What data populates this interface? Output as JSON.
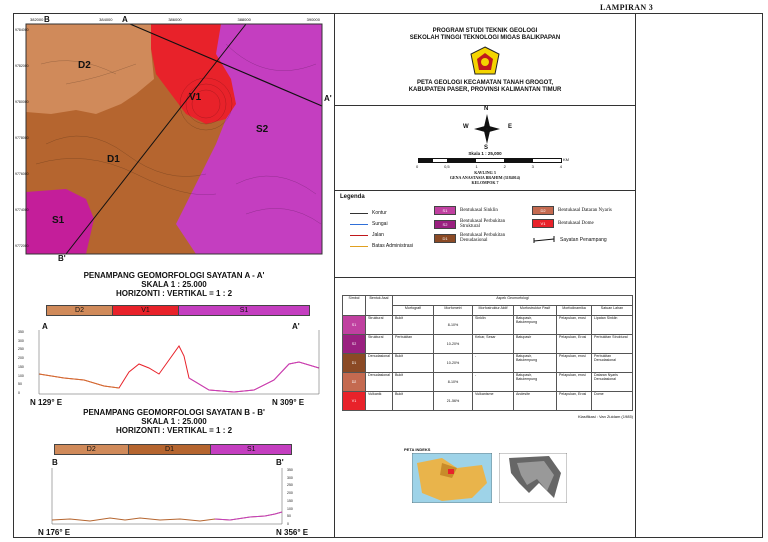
{
  "header": {
    "lampiran": "LAMPIRAN 3"
  },
  "map": {
    "units": [
      {
        "code": "D2",
        "color": "#d08a5a"
      },
      {
        "code": "V1",
        "color": "#e8222a"
      },
      {
        "code": "S2",
        "color": "#c43ec0"
      },
      {
        "code": "D1",
        "color": "#b5652f"
      },
      {
        "code": "S1",
        "color": "#c41e9a"
      }
    ],
    "section_markers": [
      "A",
      "A'",
      "B",
      "B'"
    ],
    "top_ticks": [
      "382000",
      "384000",
      "386000",
      "388000",
      "390000"
    ],
    "left_ticks": [
      "9784000",
      "9782000",
      "9780000",
      "9778000",
      "9776000",
      "9774000",
      "9772000"
    ]
  },
  "title_block": {
    "institution_line1": "PROGRAM STUDI TEKNIK GEOLOGI",
    "institution_line2": "SEKOLAH TINGGI TEKNOLOGI MIGAS BALIKPAPAN",
    "map_title_line1": "PETA GEOLOGI KECAMATAN TANAH GROGOT,",
    "map_title_line2": "KABUPATEN PASER, PROVINSI KALIMANTAN TIMUR"
  },
  "compass": {
    "n": "N",
    "s": "S",
    "e": "E",
    "w": "W"
  },
  "scale": {
    "label": "Skala 1 : 25,000",
    "ticks": [
      "0",
      "0,5",
      "1",
      "2",
      "3",
      "4"
    ],
    "unit": "KM",
    "author_line1": "KAVLING 3",
    "author_line2": "GENA ANASTASIA BRAHIM (3184014)",
    "author_line3": "KELOMPOK 7"
  },
  "legend": {
    "title": "Legenda",
    "lines": [
      {
        "label": "Kontur",
        "color": "#333333"
      },
      {
        "label": "Sungai",
        "color": "#2f6fd8"
      },
      {
        "label": "Jalan",
        "color": "#c0181c"
      },
      {
        "label": "Batas Administrasi",
        "color": "#e0a020"
      }
    ],
    "units": [
      {
        "code": "S1",
        "label": "Bentukasal Sinklin",
        "color": "#c040a0"
      },
      {
        "code": "S2",
        "label": "Bentukasal Perbukitan Struktural",
        "color": "#9a2080"
      },
      {
        "code": "D1",
        "label": "Bentukasal Perbukitan Denudasional",
        "color": "#8b4a25"
      },
      {
        "code": "D2",
        "label": "Bentukasal Dataran Nyaris",
        "color": "#c46a50"
      },
      {
        "code": "V1",
        "label": "Bentukasal Dome",
        "color": "#e8222a"
      }
    ],
    "section_label": "Sayatan Penampang"
  },
  "profile_a": {
    "title": "PENAMPANG GEOMORFOLOGI SAYATAN A - A'",
    "scale": "SKALA 1 : 25.000",
    "ratio": "HORIZONTI : VERTIKAL = 1 : 2",
    "segments": [
      {
        "code": "D2",
        "color": "#d08a5a",
        "share": 0.25
      },
      {
        "code": "V1",
        "color": "#e8222a",
        "share": 0.25
      },
      {
        "code": "S1",
        "color": "#c43ec0",
        "share": 0.5
      }
    ],
    "start": "A",
    "end": "A'",
    "dir_left": "N 129° E",
    "dir_right": "N 309° E",
    "y_ticks": [
      "350",
      "300",
      "250",
      "200",
      "150",
      "100",
      "50",
      "0"
    ]
  },
  "profile_b": {
    "title": "PENAMPANG GEOMORFOLOGI SAYATAN B - B'",
    "scale": "SKALA 1 : 25.000",
    "ratio": "HORIZONTI : VERTIKAL = 1 : 2",
    "segments": [
      {
        "code": "D2",
        "color": "#d08a5a",
        "share": 0.31
      },
      {
        "code": "D1",
        "color": "#b5652f",
        "share": 0.35
      },
      {
        "code": "S1",
        "color": "#c43ec0",
        "share": 0.34
      }
    ],
    "start": "B",
    "end": "B'",
    "dir_left": "N 176° E",
    "dir_right": "N 356° E",
    "y_ticks": [
      "350",
      "300",
      "250",
      "200",
      "150",
      "100",
      "50",
      "0"
    ]
  },
  "geo_table": {
    "group_header": "Aspek Geomorfologi",
    "col_simbol": "Simbol",
    "col_bentuk": "Bentuk Asal",
    "col_morfografi": "Morfografi",
    "col_morfometri": "Morfometri",
    "col_morfostruktur_aktif": "Morfostruktur Aktif",
    "col_morfostruktur_pasif": "Morfostruktur Pasif",
    "col_morfodinamika": "Morfodinamika",
    "col_satuan": "Satuan Lahan",
    "rows": [
      {
        "code": "S1",
        "color": "#c040a0",
        "bentuk": "Struktural",
        "morfografi": "Bukit",
        "morfometri": "8-10%",
        "aktif": "Sinklin",
        "pasif": "Batupasir, Batulempung",
        "dinamika": "Pelapukan, erosi",
        "satuan": "Lipatan Sinklin"
      },
      {
        "code": "S2",
        "color": "#9a2080",
        "bentuk": "Struktural",
        "morfografi": "Perbukitan",
        "morfometri": "10-20%",
        "aktif": "Kekar, Sesar",
        "pasif": "Batupasir",
        "dinamika": "Pelapukan, Erosi",
        "satuan": "Perbukitan Struktural"
      },
      {
        "code": "D1",
        "color": "#8b4a25",
        "bentuk": "Denudasional",
        "morfografi": "Bukit",
        "morfometri": "10-20%",
        "aktif": "-",
        "pasif": "Batupasir, Batulempung",
        "dinamika": "Pelapukan, erosi",
        "satuan": "Perbukitan Denudasional"
      },
      {
        "code": "D2",
        "color": "#c46a50",
        "bentuk": "Denudasional",
        "morfografi": "Bukit",
        "morfometri": "8-10%",
        "aktif": "-",
        "pasif": "Batupasir, Batulempung",
        "dinamika": "Pelapukan, erosi",
        "satuan": "Dataran Nyaris Denudasional"
      },
      {
        "code": "V1",
        "color": "#e8222a",
        "bentuk": "Vulkanik",
        "morfografi": "Bukit",
        "morfometri": "21-56%",
        "aktif": "Vulkanisme",
        "pasif": "Andesite",
        "dinamika": "Pelapukan, Erosi",
        "satuan": "Dome"
      }
    ],
    "source": "Klasifikasi : Van Zuidam (1985)"
  },
  "index": {
    "title": "PETA INDEKS"
  }
}
